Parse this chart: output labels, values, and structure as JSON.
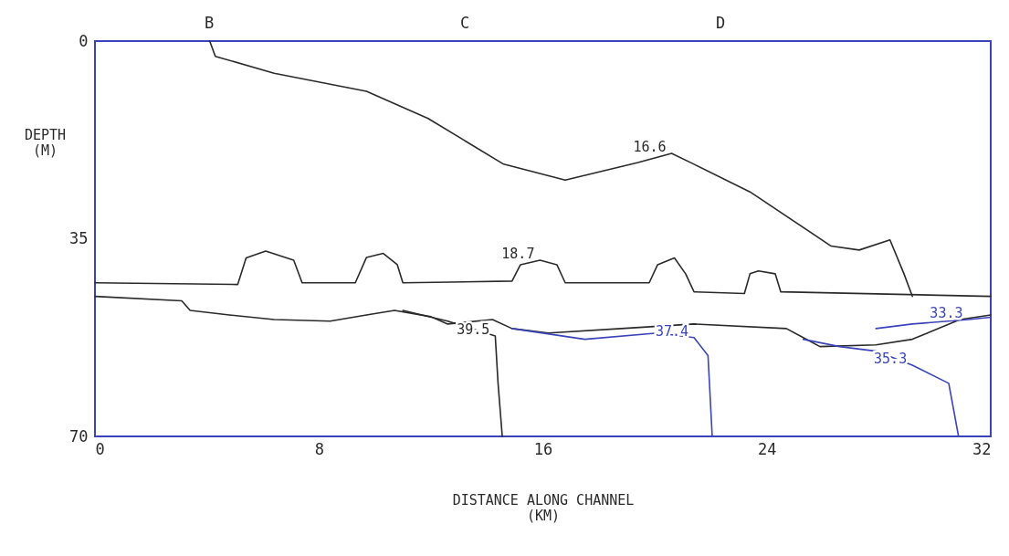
{
  "chart_data": {
    "type": "line",
    "xlabel": "DISTANCE ALONG CHANNEL (KM)",
    "ylabel": "DEPTH (M)",
    "xlim": [
      0,
      32
    ],
    "xticks": [
      0,
      8,
      16,
      24,
      32
    ],
    "ylim": [
      70,
      0
    ],
    "yticks": [
      0,
      35,
      70
    ],
    "annotations": [
      "B",
      "C",
      "D"
    ],
    "grid": false,
    "legend": false,
    "marker": "none",
    "line_style": "solid",
    "series": [
      {
        "name": "16.6",
        "color": "#2a2a2a",
        "x": [
          4.1,
          4.3,
          6.4,
          9.7,
          11.9,
          14.6,
          16.8,
          19.4,
          20.6,
          21.4,
          23.4,
          26.3,
          27.3,
          28.4,
          28.9,
          29.2
        ],
        "values": [
          0,
          2.7,
          5.7,
          8.9,
          13.7,
          21.8,
          24.6,
          21.5,
          19.9,
          21.8,
          26.7,
          36.3,
          37.0,
          35.2,
          41.2,
          45.2
        ]
      },
      {
        "name": "18.7",
        "color": "#2a2a2a",
        "x": [
          0,
          5.1,
          5.4,
          6.1,
          7.1,
          7.4,
          9.3,
          9.7,
          10.3,
          10.8,
          11.0,
          14.9,
          15.2,
          15.9,
          16.5,
          16.8,
          19.8,
          20.1,
          20.7,
          21.1,
          21.4,
          23.2,
          23.4,
          23.7,
          24.3,
          24.5,
          32
        ],
        "values": [
          42.8,
          43.1,
          38.4,
          37.2,
          38.8,
          42.8,
          42.8,
          38.3,
          37.6,
          39.6,
          42.8,
          42.5,
          39.6,
          38.8,
          39.6,
          42.8,
          42.8,
          39.6,
          38.4,
          41.2,
          44.4,
          44.7,
          41.2,
          40.7,
          41.2,
          44.4,
          45.2
        ]
      },
      {
        "color": "#2a2a2a",
        "x": [
          0,
          3.1,
          3.4,
          4.8,
          6.4,
          8.4,
          9.7,
          10.7,
          12.0,
          12.6,
          14.2,
          14.9,
          16.2,
          18.8,
          21.4,
          24.7,
          25.3,
          25.9,
          27.9,
          29.2,
          30.9,
          32
        ],
        "values": [
          45.2,
          46.0,
          47.7,
          48.5,
          49.3,
          49.6,
          48.5,
          47.7,
          48.8,
          50.1,
          49.3,
          50.9,
          51.7,
          50.9,
          50.1,
          50.9,
          52.5,
          54.1,
          53.8,
          52.8,
          49.3,
          48.5
        ]
      },
      {
        "name": "39.5",
        "color": "#2a2a2a",
        "x": [
          11.0,
          12.6,
          14.3,
          14.4,
          14.55
        ],
        "values": [
          47.7,
          49.6,
          52.2,
          60.6,
          70
        ]
      },
      {
        "name": "37.4",
        "color": "#3a44b8",
        "x": [
          14.9,
          17.5,
          20.1,
          21.4,
          21.9,
          22.05
        ],
        "values": [
          50.9,
          52.8,
          51.7,
          52.5,
          55.7,
          70
        ]
      },
      {
        "name": "35.3",
        "color": "#3a44b8",
        "x": [
          25.3,
          26.6,
          27.9,
          29.2,
          30.5,
          30.85
        ],
        "values": [
          52.8,
          54.1,
          54.9,
          57.4,
          60.6,
          70
        ]
      },
      {
        "name": "33.3",
        "color": "#3a44b8",
        "x": [
          27.9,
          29.2,
          31.2,
          32
        ],
        "values": [
          50.9,
          50.1,
          49.3,
          48.9
        ]
      }
    ]
  }
}
